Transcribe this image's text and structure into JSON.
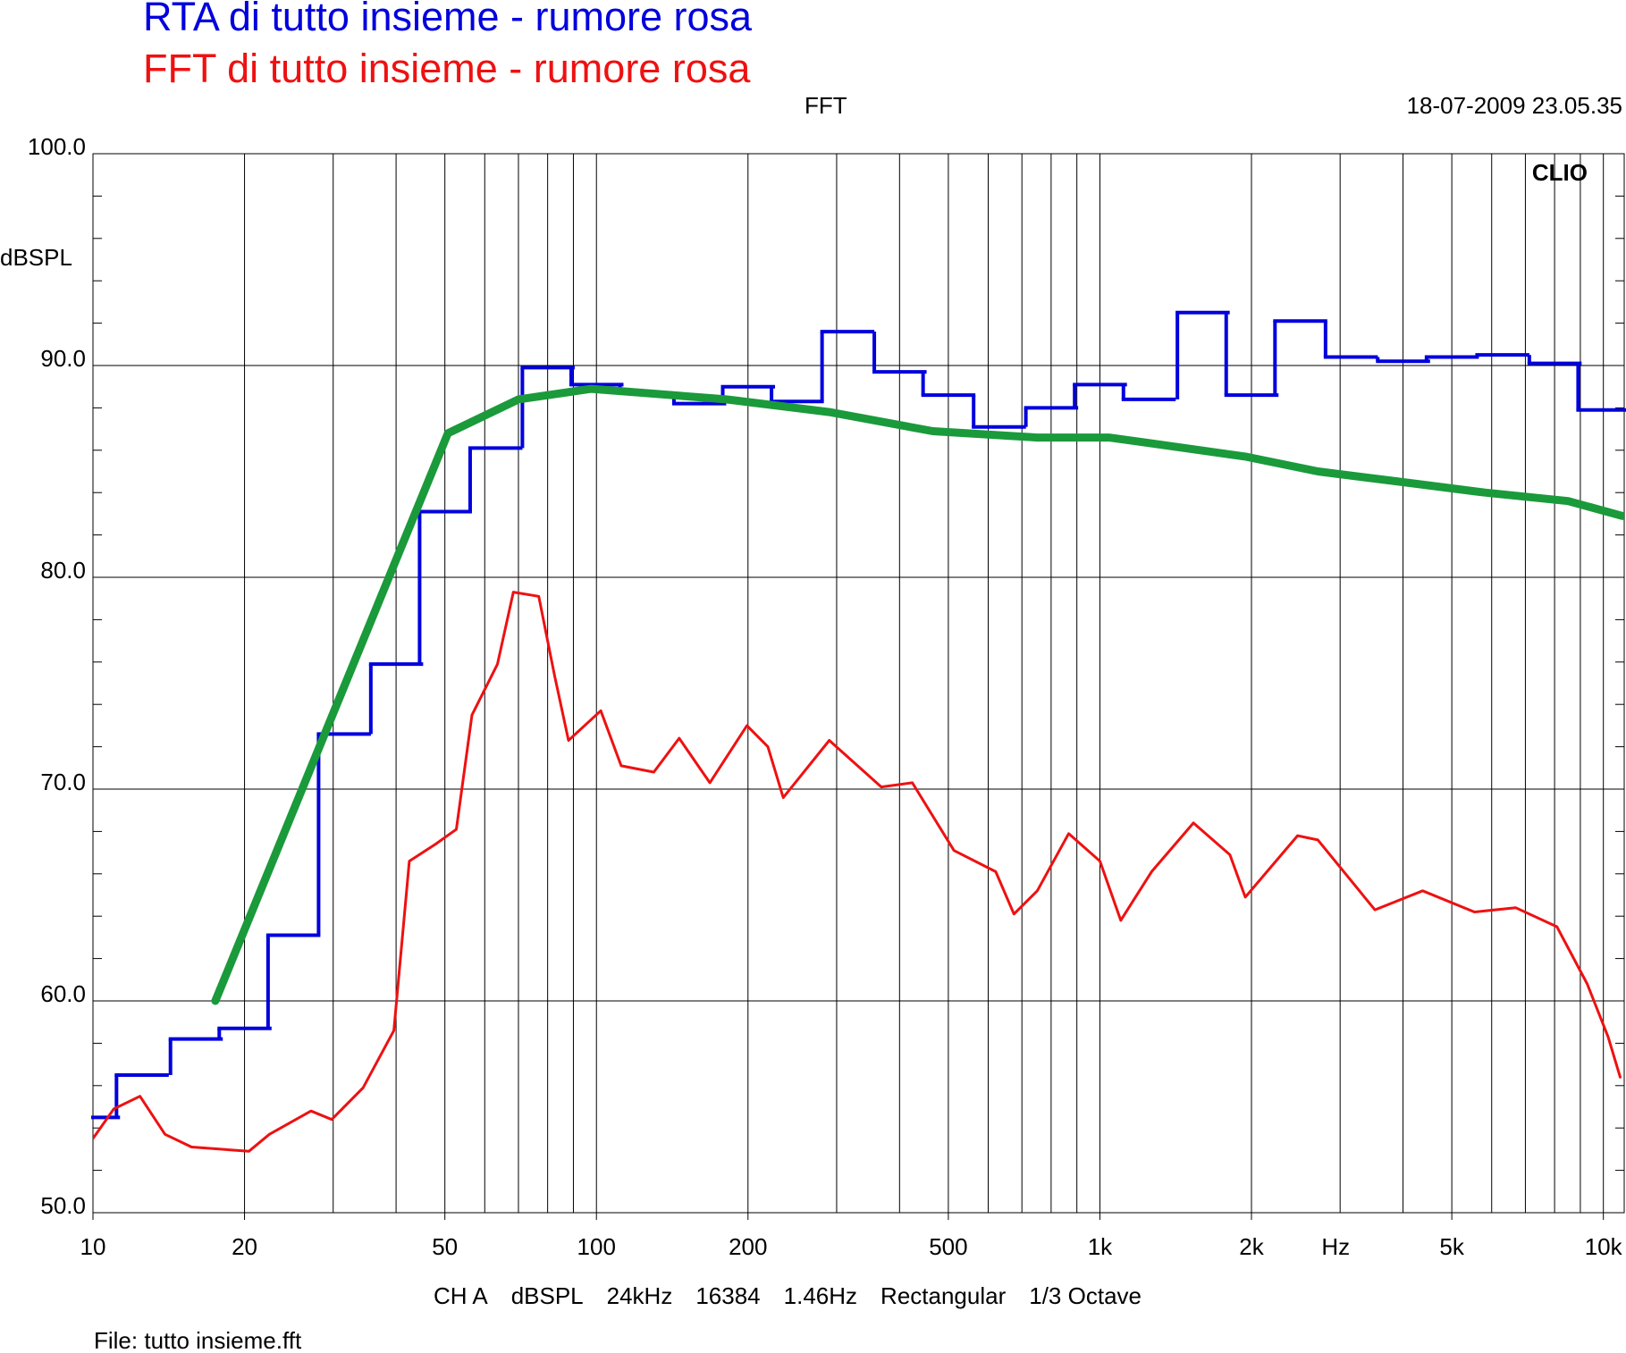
{
  "chart_data": {
    "type": "line",
    "title": "RTA di tutto insieme - rumore rosa",
    "subtitle": "FFT di tutto insieme - rumore rosa",
    "mode": "FFT",
    "timestamp": "18-07-2009 23.05.35",
    "brand": "CLIO",
    "y_label": "dBSPL",
    "x_label": "Hz",
    "settings": [
      "CH A",
      "dBSPL",
      "24kHz",
      "16384",
      "1.46Hz",
      "Rectangular",
      "1/3 Octave"
    ],
    "file": "File: tutto insieme.fft",
    "x_scale": "log",
    "xlim": [
      10,
      11000
    ],
    "ylim": [
      50,
      100
    ],
    "xticks": [
      10,
      20,
      50,
      100,
      200,
      500,
      {
        "value": 1000,
        "label": "1k"
      },
      {
        "value": 2000,
        "label": "2k"
      },
      {
        "value": 5000,
        "label": "5k"
      },
      {
        "value": 10000,
        "label": "10k"
      }
    ],
    "xgrid": [
      20,
      30,
      40,
      50,
      60,
      70,
      80,
      90,
      100,
      200,
      300,
      400,
      500,
      600,
      700,
      800,
      900,
      1000,
      2000,
      3000,
      4000,
      5000,
      6000,
      7000,
      8000,
      9000,
      10000
    ],
    "x_label_at": 2940,
    "yticks": [
      {
        "value": 50,
        "label": "50.0"
      },
      {
        "value": 60,
        "label": "60.0"
      },
      {
        "value": 70,
        "label": "70.0"
      },
      {
        "value": 80,
        "label": "80.0"
      },
      {
        "value": 90,
        "label": "90.0"
      },
      {
        "value": 100,
        "label": "100.0"
      }
    ],
    "yminor": [
      52,
      54,
      56,
      58,
      62,
      64,
      66,
      68,
      72,
      74,
      76,
      78,
      82,
      84,
      86,
      88,
      92,
      94,
      96,
      98
    ],
    "grid": true,
    "series": [
      {
        "name": "RTA di tutto insieme - rumore rosa",
        "color": "#0000dd",
        "style": "step",
        "x": [
          10,
          12.5,
          16,
          20,
          25,
          31.5,
          40,
          50,
          63,
          80,
          100,
          125,
          160,
          200,
          250,
          315,
          400,
          500,
          630,
          800,
          1000,
          1250,
          1600,
          2000,
          2500,
          3150,
          4000,
          5000,
          6300,
          8000,
          10000
        ],
        "values": [
          54.5,
          56.5,
          58.2,
          58.7,
          63.1,
          72.6,
          75.9,
          83.1,
          86.1,
          89.9,
          89.1,
          88.7,
          88.2,
          89.0,
          88.3,
          91.6,
          89.7,
          88.6,
          87.1,
          88.0,
          89.1,
          88.4,
          92.5,
          88.6,
          92.1,
          90.4,
          90.2,
          90.4,
          90.5,
          90.1,
          87.9
        ]
      },
      {
        "name": "FFT di tutto insieme - rumore rosa",
        "color": "#ee1111",
        "style": "line",
        "x": [
          10,
          11,
          12.4,
          13.9,
          15.7,
          20.4,
          22.4,
          27.1,
          29.8,
          34.4,
          39.6,
          42.5,
          47.9,
          52.7,
          56.6,
          63.6,
          68.4,
          76.8,
          82.5,
          88,
          102,
          112,
          130,
          146,
          168,
          199,
          219,
          235,
          290,
          368,
          424,
          513,
          621,
          675,
          751,
          867,
          1000,
          1100,
          1267,
          1534,
          1812,
          1944,
          2470,
          2710,
          3518,
          4376,
          5544,
          6693,
          8086,
          9289,
          10218,
          10800
        ],
        "values": [
          53.5,
          54.9,
          55.5,
          53.7,
          53.1,
          52.9,
          53.7,
          54.8,
          54.4,
          55.9,
          58.6,
          66.6,
          67.4,
          68.1,
          73.5,
          75.9,
          79.3,
          79.1,
          75.4,
          72.3,
          73.7,
          71.1,
          70.8,
          72.4,
          70.3,
          73.0,
          72.0,
          69.6,
          72.3,
          70.1,
          70.3,
          67.1,
          66.1,
          64.1,
          65.2,
          67.9,
          66.6,
          63.8,
          66.1,
          68.4,
          66.9,
          64.9,
          67.8,
          67.6,
          64.3,
          65.2,
          64.2,
          64.4,
          63.5,
          60.8,
          58.3,
          56.4
        ]
      },
      {
        "color": "#1a9a3a",
        "style": "thick",
        "x": [
          17.5,
          50.7,
          70,
          97.7,
          181,
          290,
          466,
          751,
          1042,
          1200,
          1944,
          2710,
          3982,
          5817,
          8508,
          10900
        ],
        "values": [
          60.0,
          86.8,
          88.4,
          88.9,
          88.4,
          87.8,
          86.9,
          86.6,
          86.6,
          86.4,
          85.7,
          85.0,
          84.5,
          84.0,
          83.6,
          82.9
        ]
      }
    ]
  }
}
